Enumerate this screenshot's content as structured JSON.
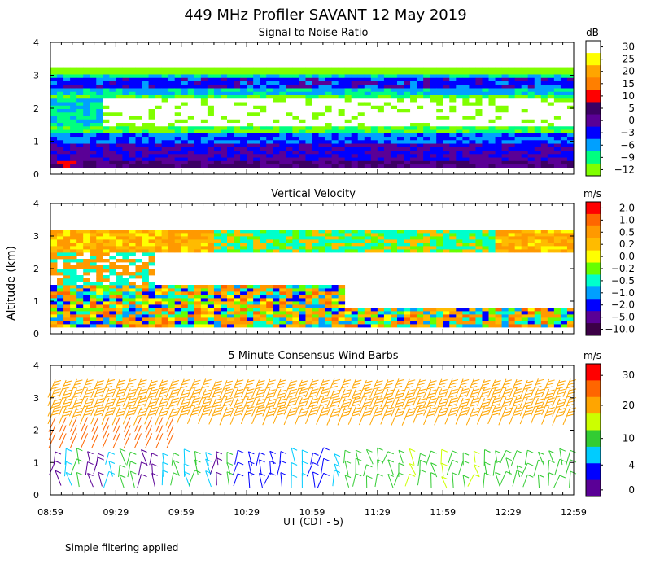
{
  "title": "449 MHz Profiler SAVANT 12 May 2019",
  "footnote": "Simple filtering applied",
  "y_axis_label": "Altitude (km)",
  "x_axis_label": "UT  (CDT - 5)",
  "x_ticks": [
    "08:59",
    "09:29",
    "09:59",
    "10:29",
    "10:59",
    "11:29",
    "11:59",
    "12:29",
    "12:59"
  ],
  "chart_data": [
    {
      "type": "heatmap",
      "title": "Signal to Noise Ratio",
      "ylabel": "Altitude (km)",
      "xlabel": "UT  (CDT - 5)",
      "ylim": [
        0,
        4
      ],
      "y_ticks": [
        "0",
        "1",
        "2",
        "3",
        "4"
      ],
      "x_range_ut": [
        "08:59",
        "12:59"
      ],
      "colorbar": {
        "unit": "dB",
        "labels": [
          "30",
          "25",
          "20",
          "15",
          "10",
          "5",
          "0",
          "−3",
          "−6",
          "−9",
          "−12"
        ],
        "colors": [
          "#ffffff",
          "#ffff00",
          "#ffa500",
          "#ff7f00",
          "#ff0000",
          "#3c0064",
          "#5a0096",
          "#0000ff",
          "#00a0ff",
          "#00ff80",
          "#80ff00"
        ]
      }
    },
    {
      "type": "heatmap",
      "title": "Vertical Velocity",
      "ylabel": "Altitude (km)",
      "xlabel": "UT  (CDT - 5)",
      "ylim": [
        0,
        4
      ],
      "y_ticks": [
        "0",
        "1",
        "2",
        "3",
        "4"
      ],
      "x_range_ut": [
        "08:59",
        "12:59"
      ],
      "colorbar": {
        "unit": "m/s",
        "labels": [
          "2.0",
          "1.0",
          "0.5",
          "0.2",
          "0.0",
          "−0.2",
          "−0.5",
          "−1.0",
          "−2.0",
          "−5.0",
          "−10.0"
        ],
        "colors": [
          "#ff0000",
          "#ff6600",
          "#ff9900",
          "#ffbb00",
          "#ffff00",
          "#66ff00",
          "#00ffcc",
          "#00a0ff",
          "#0000ff",
          "#5a0096",
          "#3c0046"
        ]
      }
    },
    {
      "type": "scatter",
      "title": "5 Minute Consensus Wind Barbs",
      "ylabel": "Altitude (km)",
      "xlabel": "UT  (CDT - 5)",
      "ylim": [
        0,
        4
      ],
      "y_ticks": [
        "0",
        "1",
        "2",
        "3",
        "4"
      ],
      "x_range_ut": [
        "08:59",
        "12:59"
      ],
      "colorbar": {
        "unit": "m/s",
        "labels": [
          "30",
          "20",
          "10",
          "4",
          "0"
        ],
        "colors": [
          "#ff0000",
          "#ff6600",
          "#ffa500",
          "#ccff00",
          "#33cc33",
          "#00ccff",
          "#0000ff",
          "#5a0096"
        ]
      }
    }
  ]
}
